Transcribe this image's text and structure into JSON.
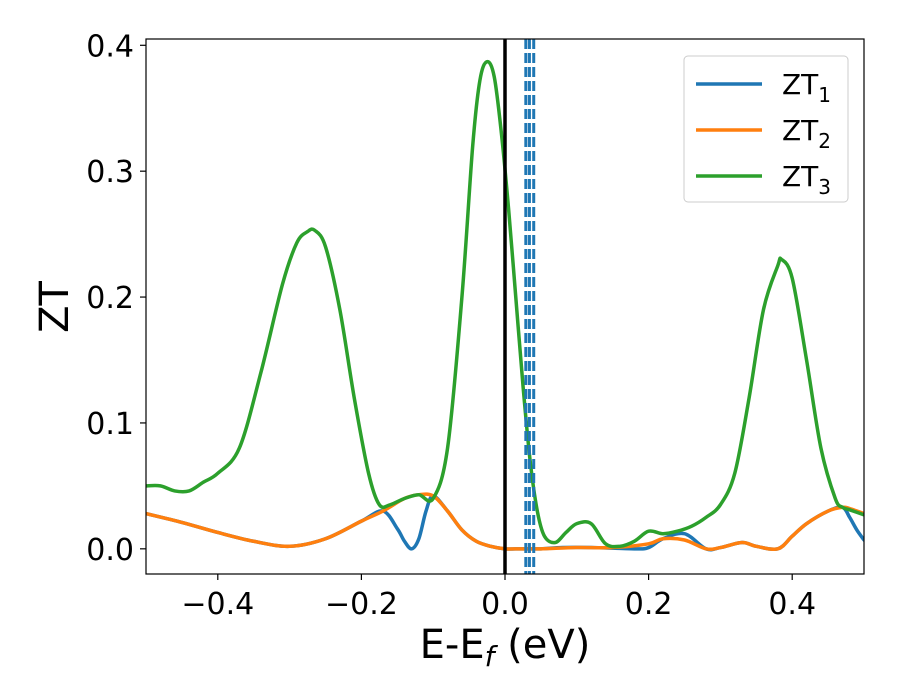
{
  "chart_data": {
    "type": "line",
    "xlabel": {
      "main": "E-E",
      "sub": "f",
      "suffix": " (eV)"
    },
    "ylabel": "ZT",
    "xlim": [
      -0.5,
      0.5
    ],
    "ylim": [
      -0.02,
      0.405
    ],
    "xticks": [
      -0.4,
      -0.2,
      0.0,
      0.2,
      0.4
    ],
    "xtick_labels": [
      "−0.4",
      "−0.2",
      "0.0",
      "0.2",
      "0.4"
    ],
    "yticks": [
      0.0,
      0.1,
      0.2,
      0.3,
      0.4
    ],
    "ytick_labels": [
      "0.0",
      "0.1",
      "0.2",
      "0.3",
      "0.4"
    ],
    "grid": false,
    "legend_position": "top-right",
    "vertical_lines": [
      {
        "x": 0.0,
        "color": "#000000",
        "style": "solid"
      },
      {
        "x": 0.029,
        "color": "#1f77b4",
        "style": "dashed"
      },
      {
        "x": 0.034,
        "color": "#1f77b4",
        "style": "dashed"
      },
      {
        "x": 0.04,
        "color": "#1f77b4",
        "style": "dashed"
      }
    ],
    "series": [
      {
        "name": "ZT",
        "sub": "1",
        "color": "#1f77b4",
        "x": [
          -0.5,
          -0.45,
          -0.4,
          -0.35,
          -0.3,
          -0.25,
          -0.2,
          -0.17,
          -0.15,
          -0.14,
          -0.13,
          -0.12,
          -0.11,
          -0.1,
          -0.08,
          -0.06,
          -0.04,
          -0.02,
          0.0,
          0.02,
          0.03,
          0.05,
          0.08,
          0.12,
          0.18,
          0.2,
          0.22,
          0.25,
          0.28,
          0.3,
          0.33,
          0.35,
          0.38,
          0.4,
          0.42,
          0.45,
          0.47,
          0.48,
          0.49,
          0.5
        ],
        "y": [
          0.028,
          0.021,
          0.013,
          0.006,
          0.002,
          0.008,
          0.022,
          0.03,
          0.016,
          0.006,
          0.0,
          0.008,
          0.03,
          0.042,
          0.03,
          0.015,
          0.006,
          0.002,
          0.0,
          0.0,
          0.0,
          0.0,
          0.001,
          0.001,
          0.0,
          0.001,
          0.008,
          0.012,
          0.0,
          0.001,
          0.005,
          0.002,
          0.0,
          0.01,
          0.02,
          0.03,
          0.033,
          0.025,
          0.015,
          0.007
        ]
      },
      {
        "name": "ZT",
        "sub": "2",
        "color": "#ff7f0e",
        "x": [
          -0.5,
          -0.45,
          -0.4,
          -0.35,
          -0.3,
          -0.25,
          -0.2,
          -0.17,
          -0.14,
          -0.12,
          -0.1,
          -0.08,
          -0.06,
          -0.04,
          -0.02,
          0.0,
          0.02,
          0.05,
          0.1,
          0.15,
          0.2,
          0.22,
          0.25,
          0.28,
          0.3,
          0.33,
          0.35,
          0.38,
          0.4,
          0.42,
          0.45,
          0.47,
          0.48,
          0.5
        ],
        "y": [
          0.028,
          0.021,
          0.013,
          0.006,
          0.002,
          0.008,
          0.022,
          0.03,
          0.04,
          0.043,
          0.042,
          0.03,
          0.015,
          0.006,
          0.002,
          0.0,
          0.0,
          0.0,
          0.001,
          0.001,
          0.004,
          0.008,
          0.007,
          0.0,
          0.001,
          0.005,
          0.002,
          0.0,
          0.01,
          0.02,
          0.03,
          0.033,
          0.032,
          0.028
        ]
      },
      {
        "name": "ZT",
        "sub": "3",
        "color": "#2ca02c",
        "x": [
          -0.5,
          -0.48,
          -0.46,
          -0.44,
          -0.42,
          -0.4,
          -0.37,
          -0.34,
          -0.31,
          -0.29,
          -0.275,
          -0.265,
          -0.25,
          -0.23,
          -0.21,
          -0.19,
          -0.175,
          -0.16,
          -0.14,
          -0.12,
          -0.1,
          -0.08,
          -0.06,
          -0.045,
          -0.035,
          -0.025,
          -0.015,
          -0.005,
          0.005,
          0.015,
          0.025,
          0.035,
          0.045,
          0.055,
          0.07,
          0.085,
          0.1,
          0.12,
          0.14,
          0.16,
          0.18,
          0.2,
          0.22,
          0.24,
          0.26,
          0.28,
          0.3,
          0.32,
          0.34,
          0.36,
          0.38,
          0.385,
          0.4,
          0.42,
          0.44,
          0.46,
          0.47,
          0.48,
          0.5
        ],
        "y": [
          0.05,
          0.05,
          0.046,
          0.046,
          0.053,
          0.06,
          0.08,
          0.14,
          0.21,
          0.243,
          0.252,
          0.253,
          0.24,
          0.19,
          0.12,
          0.06,
          0.035,
          0.035,
          0.04,
          0.043,
          0.04,
          0.08,
          0.2,
          0.32,
          0.372,
          0.387,
          0.375,
          0.33,
          0.27,
          0.2,
          0.13,
          0.07,
          0.03,
          0.01,
          0.005,
          0.013,
          0.02,
          0.02,
          0.004,
          0.002,
          0.006,
          0.014,
          0.012,
          0.014,
          0.018,
          0.025,
          0.035,
          0.06,
          0.12,
          0.19,
          0.225,
          0.23,
          0.215,
          0.15,
          0.08,
          0.04,
          0.033,
          0.031,
          0.027
        ]
      }
    ]
  }
}
